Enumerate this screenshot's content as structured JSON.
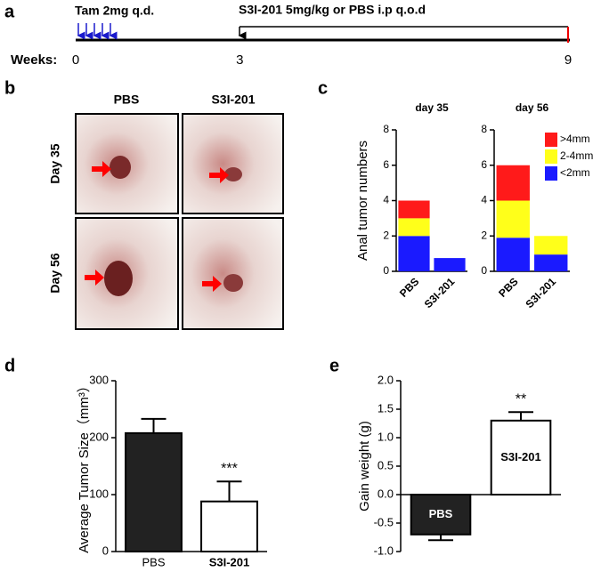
{
  "panel_labels": [
    "a",
    "b",
    "c",
    "d",
    "e"
  ],
  "timeline": {
    "tam": "Tam 2mg q.d.",
    "treatment": "S3I-201 5mg/kg or PBS i.p q.o.d",
    "axis_label": "Weeks:",
    "xlim": [
      0,
      9
    ],
    "ticks": [
      0,
      3,
      9
    ]
  },
  "photos": {
    "columns": [
      "PBS",
      "S3I-201"
    ],
    "rows": [
      "Day 35",
      "Day 56"
    ]
  },
  "chart_data": [
    {
      "type": "stacked_bar",
      "ylabel": "Anal tumor numbers",
      "ylim": [
        0,
        8
      ],
      "yticks": [
        0,
        2,
        4,
        6,
        8
      ],
      "legend": [
        {
          "name": ">4mm",
          "color": "#ff1a1a"
        },
        {
          "name": "2-4mm",
          "color": "#ffff1a"
        },
        {
          "name": "<2mm",
          "color": "#1a1aff"
        }
      ],
      "facets": [
        {
          "title": "day 35",
          "categories": [
            "PBS",
            "S3I-201"
          ],
          "series": [
            {
              "values": [
                1,
                0
              ]
            },
            {
              "values": [
                1,
                0
              ]
            },
            {
              "values": [
                2,
                0.75
              ]
            }
          ]
        },
        {
          "title": "day 56",
          "categories": [
            "PBS",
            "S3I-201"
          ],
          "series": [
            {
              "values": [
                2,
                0
              ]
            },
            {
              "values": [
                2.1,
                1.05
              ]
            },
            {
              "values": [
                1.9,
                0.95
              ]
            }
          ]
        }
      ]
    },
    {
      "type": "bar",
      "ylabel": "Average Tumor Size（mm³）",
      "categories": [
        "PBS",
        "S3I-201"
      ],
      "values": [
        208,
        88
      ],
      "errors": [
        25,
        35
      ],
      "colors": [
        "#222222",
        "#ffffff"
      ],
      "ylim": [
        0,
        300
      ],
      "yticks": [
        0,
        100,
        200,
        300
      ],
      "annotations": [
        {
          "text": "***",
          "category": 1
        }
      ],
      "labels_inside": false
    },
    {
      "type": "bar",
      "ylabel": "Gain weight (g)",
      "categories": [
        "PBS",
        "S3I-201"
      ],
      "values": [
        -0.7,
        1.3
      ],
      "errors": [
        0.1,
        0.15
      ],
      "colors": [
        "#222222",
        "#ffffff"
      ],
      "ylim": [
        -1,
        2
      ],
      "yticks": [
        {
          "value": -1,
          "label": "-1.0"
        },
        {
          "value": -0.5,
          "label": "-0.5"
        },
        {
          "value": 0,
          "label": "0.0"
        },
        {
          "value": 0.5,
          "label": "0.5"
        },
        {
          "value": 1,
          "label": "1.0"
        },
        {
          "value": 1.5,
          "label": "1.5"
        },
        {
          "value": 2,
          "label": "2.0"
        }
      ],
      "annotations": [
        {
          "text": "**",
          "category": 1
        }
      ],
      "labels_inside": true
    }
  ]
}
